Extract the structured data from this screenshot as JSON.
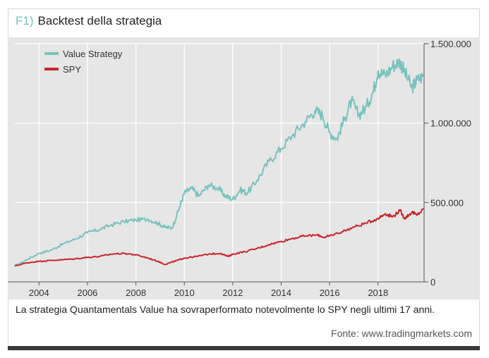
{
  "figure": {
    "tag": "F1)",
    "title": "Backtest della strategia",
    "caption": "La strategia Quantamentals Value ha sovraperformato notevolmente lo SPY negli ultimi 17 anni.",
    "source": "Fonte: www.tradingmarkets.com"
  },
  "colors": {
    "value_strategy": "#79c2bd",
    "spy": "#c9252b",
    "panel_bg": "#e6e6e6",
    "accent": "#79c2bd"
  },
  "chart_data": {
    "type": "line",
    "title": "Backtest della strategia",
    "xlabel": "",
    "ylabel": "",
    "xlim": [
      2003,
      2019.9
    ],
    "ylim": [
      0,
      1500000
    ],
    "x_ticks": [
      2004,
      2006,
      2008,
      2010,
      2012,
      2014,
      2016,
      2018
    ],
    "x_tick_labels": [
      "2004",
      "2006",
      "2008",
      "2010",
      "2012",
      "2014",
      "2016",
      "2018"
    ],
    "y_ticks": [
      0,
      500000,
      1000000,
      1500000
    ],
    "y_tick_labels": [
      "0",
      "500.000",
      "1.000.000",
      "1.500.000"
    ],
    "y_axis_side": "right",
    "grid": true,
    "legend_position": "top-left",
    "series": [
      {
        "name": "Value Strategy",
        "color": "#79c2bd",
        "x": [
          2003.0,
          2003.5,
          2004.0,
          2004.5,
          2005.0,
          2005.5,
          2006.0,
          2006.5,
          2007.0,
          2007.5,
          2008.0,
          2008.5,
          2008.9,
          2009.2,
          2009.5,
          2009.8,
          2010.0,
          2010.3,
          2010.6,
          2011.0,
          2011.4,
          2011.7,
          2012.0,
          2012.3,
          2012.6,
          2013.0,
          2013.5,
          2014.0,
          2014.5,
          2015.0,
          2015.4,
          2015.7,
          2016.0,
          2016.3,
          2016.6,
          2016.9,
          2017.2,
          2017.5,
          2017.8,
          2018.0,
          2018.3,
          2018.6,
          2018.9,
          2019.1,
          2019.4,
          2019.6,
          2019.9
        ],
        "y": [
          100000,
          140000,
          180000,
          200000,
          240000,
          270000,
          310000,
          330000,
          360000,
          380000,
          390000,
          395000,
          370000,
          345000,
          340000,
          470000,
          560000,
          590000,
          540000,
          610000,
          590000,
          540000,
          520000,
          580000,
          560000,
          640000,
          760000,
          840000,
          930000,
          1010000,
          1080000,
          1050000,
          940000,
          900000,
          1020000,
          1140000,
          1050000,
          1100000,
          1200000,
          1330000,
          1300000,
          1360000,
          1390000,
          1320000,
          1220000,
          1270000,
          1300000
        ]
      },
      {
        "name": "SPY",
        "color": "#c9252b",
        "x": [
          2003.0,
          2003.5,
          2004.0,
          2004.5,
          2005.0,
          2005.5,
          2006.0,
          2006.5,
          2007.0,
          2007.5,
          2008.0,
          2008.5,
          2008.9,
          2009.2,
          2009.5,
          2009.8,
          2010.0,
          2010.5,
          2011.0,
          2011.5,
          2011.8,
          2012.0,
          2012.5,
          2013.0,
          2013.5,
          2014.0,
          2014.5,
          2015.0,
          2015.5,
          2015.8,
          2016.0,
          2016.5,
          2017.0,
          2017.5,
          2018.0,
          2018.3,
          2018.6,
          2018.9,
          2019.1,
          2019.4,
          2019.6,
          2019.9
        ],
        "y": [
          100000,
          120000,
          130000,
          135000,
          140000,
          145000,
          155000,
          160000,
          175000,
          180000,
          170000,
          150000,
          130000,
          110000,
          125000,
          140000,
          150000,
          160000,
          175000,
          180000,
          160000,
          175000,
          190000,
          210000,
          235000,
          255000,
          275000,
          290000,
          295000,
          280000,
          290000,
          315000,
          345000,
          370000,
          400000,
          430000,
          410000,
          450000,
          400000,
          440000,
          420000,
          460000
        ]
      }
    ]
  }
}
